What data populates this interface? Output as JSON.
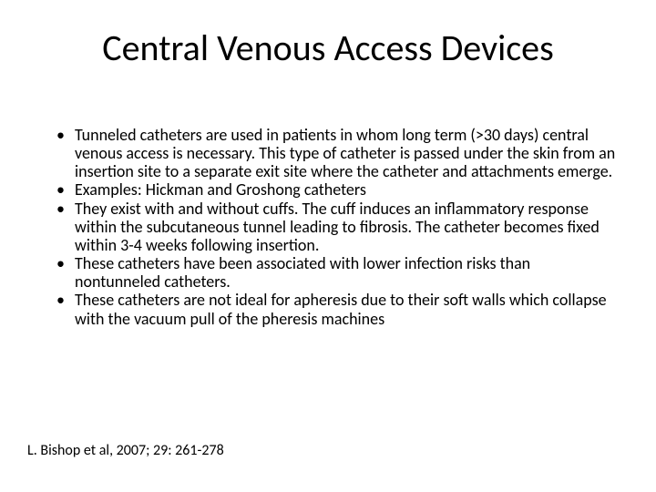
{
  "slide": {
    "title": "Central Venous Access Devices",
    "bullets": [
      "Tunneled catheters are used in patients in whom long term (>30 days) central venous access is necessary. This type of catheter is passed under the skin from an insertion site to a separate exit site where the catheter and attachments emerge.",
      "Examples: Hickman and Groshong catheters",
      "They exist with and without cuffs. The cuff induces an inflammatory response within the subcutaneous tunnel leading to fibrosis. The catheter becomes fixed within 3-4 weeks following insertion.",
      "These catheters have been associated with lower infection risks than nontunneled catheters.",
      "These catheters are not ideal for apheresis due to their soft walls which collapse with the vacuum pull of the pheresis machines"
    ],
    "citation": "L. Bishop et al, 2007; 29: 261-278"
  },
  "style": {
    "background_color": "#ffffff",
    "text_color": "#000000",
    "title_fontsize": 40,
    "body_fontsize": 18,
    "citation_fontsize": 16,
    "font_family": "Calibri"
  }
}
